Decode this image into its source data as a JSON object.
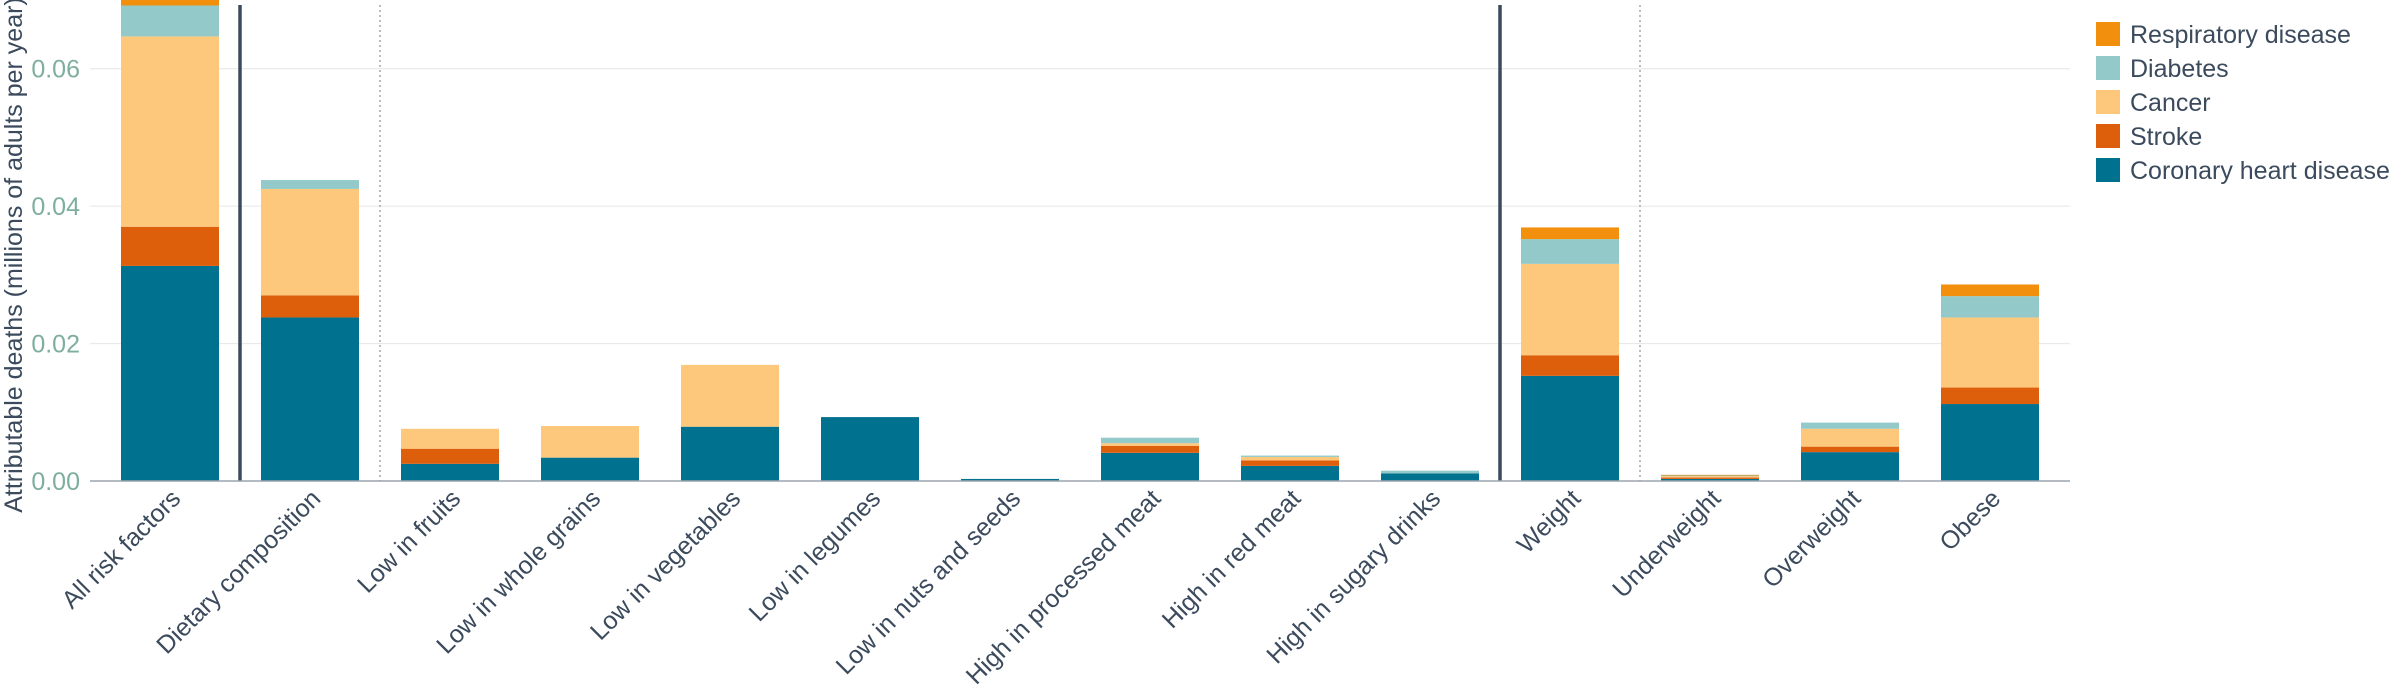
{
  "chart_data": {
    "type": "bar",
    "stacked": true,
    "title": "",
    "xlabel": "",
    "ylabel": "Attributable deaths (millions of adults per year)",
    "ylim": [
      0,
      0.07
    ],
    "yticks": [
      "0.00",
      "0.02",
      "0.04",
      "0.06"
    ],
    "grid": true,
    "legend_position": "top-right",
    "categories": [
      "All risk factors",
      "Dietary composition",
      "Low in fruits",
      "Low in whole grains",
      "Low in vegetables",
      "Low in legumes",
      "Low in nuts and seeds",
      "High in processed meat",
      "High in red meat",
      "High in sugary drinks",
      "Weight",
      "Underweight",
      "Overweight",
      "Obese"
    ],
    "series": [
      {
        "name": "Coronary heart disease",
        "color": "#00718f",
        "values": [
          0.0313,
          0.0238,
          0.0025,
          0.0034,
          0.0079,
          0.0093,
          0.0003,
          0.0041,
          0.0022,
          0.0011,
          0.0153,
          0.0003,
          0.0042,
          0.0112
        ]
      },
      {
        "name": "Stroke",
        "color": "#dd5f0c",
        "values": [
          0.0057,
          0.0032,
          0.0022,
          0.0,
          0.0,
          0.0,
          0.0,
          0.001,
          0.0008,
          0.0,
          0.003,
          0.0002,
          0.0008,
          0.0024
        ]
      },
      {
        "name": "Cancer",
        "color": "#fdc77c",
        "values": [
          0.0277,
          0.0155,
          0.0029,
          0.0046,
          0.009,
          0.0,
          0.0,
          0.0004,
          0.0005,
          0.0,
          0.0133,
          0.0002,
          0.0026,
          0.0102
        ]
      },
      {
        "name": "Diabetes",
        "color": "#93cac9",
        "values": [
          0.0045,
          0.0013,
          0.0,
          0.0,
          0.0,
          0.0,
          0.0,
          0.0008,
          0.0002,
          0.0004,
          0.0036,
          0.0001,
          0.0009,
          0.0031
        ]
      },
      {
        "name": "Respiratory disease",
        "color": "#f28f0c",
        "values": [
          0.005,
          0.0,
          0.0,
          0.0,
          0.0,
          0.0,
          0.0,
          0.0,
          0.0,
          0.0,
          0.0017,
          0.0001,
          0.0,
          0.0017
        ]
      }
    ],
    "group_dividers": [
      {
        "after_category": "All risk factors",
        "style": "solid"
      },
      {
        "after_category": "Dietary composition",
        "style": "dotted"
      },
      {
        "after_category": "High in sugary drinks",
        "style": "solid"
      },
      {
        "after_category": "Weight",
        "style": "dotted"
      }
    ],
    "legend_order": [
      "Respiratory disease",
      "Diabetes",
      "Cancer",
      "Stroke",
      "Coronary heart disease"
    ]
  }
}
